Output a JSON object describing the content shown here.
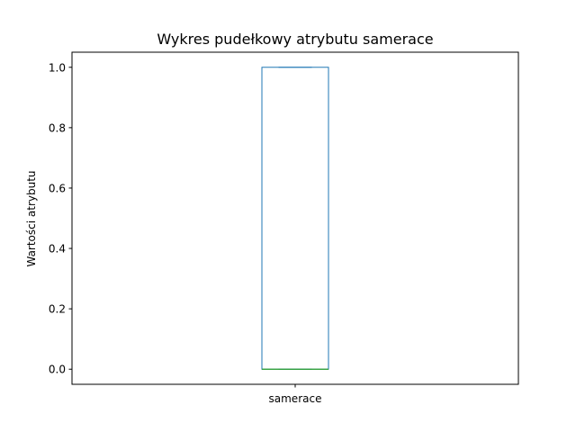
{
  "chart_data": {
    "type": "box",
    "title": "Wykres pudełkowy atrybutu samerace",
    "xlabel": "",
    "ylabel": "Wartości atrybutu",
    "categories": [
      "samerace"
    ],
    "ylim": [
      -0.05,
      1.05
    ],
    "yticks": [
      0.0,
      0.2,
      0.4,
      0.6,
      0.8,
      1.0
    ],
    "ytick_labels": [
      "0.0",
      "0.2",
      "0.4",
      "0.6",
      "0.8",
      "1.0"
    ],
    "boxes": [
      {
        "category": "samerace",
        "whisker_low": 0,
        "q1": 0,
        "median": 0,
        "q3": 1,
        "whisker_high": 1
      }
    ],
    "grid": false,
    "colors": {
      "box": "#1f77b4",
      "median": "#2ca02c",
      "axes": "#000000"
    }
  }
}
